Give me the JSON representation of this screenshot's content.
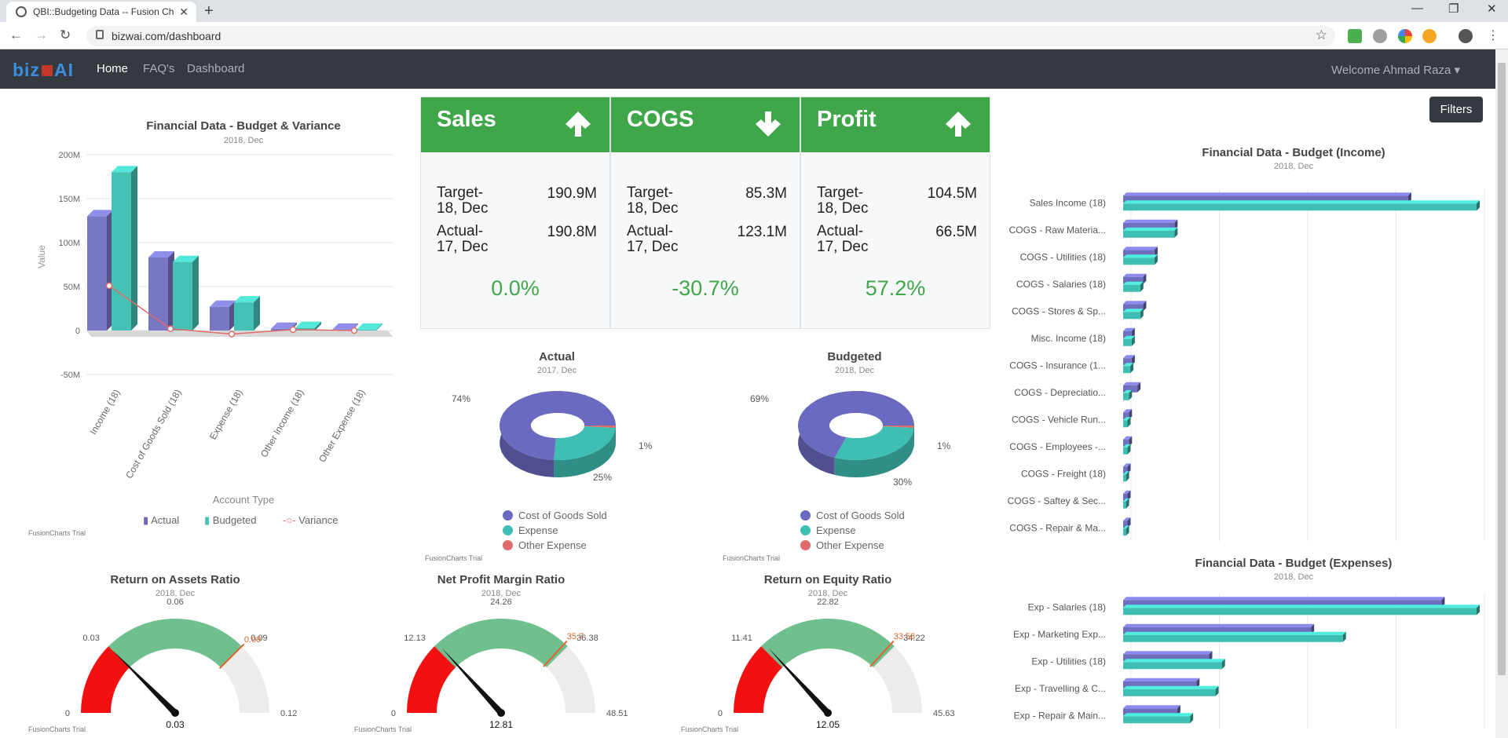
{
  "browser": {
    "tab_title": "QBI::Budgeting Data -- Fusion Ch",
    "url": "bizwai.com/dashboard"
  },
  "navbar": {
    "logo": "bizwAI",
    "links": [
      "Home",
      "FAQ's",
      "Dashboard"
    ],
    "welcome": "Welcome  Ahmad Raza"
  },
  "filters_label": "Filters",
  "kpis": [
    {
      "title": "Sales",
      "direction": "up",
      "target_label": "Target-\n18, Dec",
      "target": "190.9M",
      "actual_label": "Actual-\n17, Dec",
      "actual": "190.8M",
      "pct": "0.0%"
    },
    {
      "title": "COGS",
      "direction": "down",
      "target_label": "Target-\n18, Dec",
      "target": "85.3M",
      "actual_label": "Actual-\n17, Dec",
      "actual": "123.1M",
      "pct": "-30.7%"
    },
    {
      "title": "Profit",
      "direction": "up",
      "target_label": "Target-\n18, Dec",
      "target": "104.5M",
      "actual_label": "Actual-\n17, Dec",
      "actual": "66.5M",
      "pct": "57.2%"
    }
  ],
  "trial_text": "FusionCharts Trial",
  "chart_data": [
    {
      "type": "bar",
      "title": "Financial Data - Budget & Variance",
      "subtitle": "2018, Dec",
      "xlabel": "Account Type",
      "ylabel": "Value",
      "yticks": [
        "200M",
        "150M",
        "100M",
        "50M",
        "0",
        "-50M"
      ],
      "ylim": [
        -50,
        200
      ],
      "categories": [
        "Income (18)",
        "Cost of Goods Sold (18)",
        "Expense (18)",
        "Other Income (18)",
        "Other Expense (18)"
      ],
      "series": [
        {
          "name": "Actual",
          "values": [
            130,
            83,
            27,
            2,
            1
          ],
          "color": "#7777c4"
        },
        {
          "name": "Budgeted",
          "values": [
            180,
            78,
            32,
            3,
            1
          ],
          "color": "#45c1b5"
        },
        {
          "name": "Variance",
          "values": [
            51,
            2,
            -4,
            1,
            0
          ],
          "color": "#e06b6b"
        }
      ]
    },
    {
      "type": "pie",
      "title": "Actual",
      "subtitle": "2017, Dec",
      "labels": [
        "Cost of Goods Sold",
        "Expense",
        "Other Expense"
      ],
      "values": [
        74,
        25,
        1
      ],
      "value_labels": [
        "74%",
        "25%",
        "1%"
      ],
      "colors": [
        "#6a6ac0",
        "#3fbfb3",
        "#e06b6b"
      ]
    },
    {
      "type": "pie",
      "title": "Budgeted",
      "subtitle": "2018, Dec",
      "labels": [
        "Cost of Goods Sold",
        "Expense",
        "Other Expense"
      ],
      "values": [
        69,
        30,
        1
      ],
      "value_labels": [
        "69%",
        "30%",
        "1%"
      ],
      "colors": [
        "#6a6ac0",
        "#3fbfb3",
        "#e06b6b"
      ]
    },
    {
      "type": "bar",
      "title": "Financial Data - Budget (Income)",
      "subtitle": "2018, Dec",
      "categories": [
        "Sales Income (18)",
        "COGS - Raw Materia...",
        "COGS - Utilities (18)",
        "COGS - Salaries (18)",
        "COGS - Stores & Sp...",
        "Misc. Income (18)",
        "COGS - Insurance (1...",
        "COGS - Depreciatio...",
        "COGS - Vehicle Run...",
        "COGS - Employees -...",
        "COGS - Freight (18)",
        "COGS - Saftey & Sec...",
        "COGS - Repair & Ma..."
      ],
      "series": [
        {
          "name": "Actual",
          "values": [
            100,
            18,
            11,
            7,
            7,
            3,
            3,
            5,
            2,
            2,
            1.5,
            1.5,
            1.5
          ]
        },
        {
          "name": "Budgeted",
          "values": [
            124,
            18,
            11,
            6,
            6,
            3,
            2.5,
            2,
            1.5,
            1.5,
            1,
            1,
            1
          ]
        }
      ]
    },
    {
      "type": "bar",
      "title": "Financial Data - Budget (Expenses)",
      "subtitle": "2018, Dec",
      "categories": [
        "Exp - Salaries (18)",
        "Exp - Marketing Exp...",
        "Exp - Utilities (18)",
        "Exp - Travelling & C...",
        "Exp - Repair & Main..."
      ],
      "series": [
        {
          "name": "Actual",
          "values": [
            100,
            59,
            27,
            23,
            17
          ]
        },
        {
          "name": "Budgeted",
          "values": [
            111,
            69,
            31,
            29,
            21
          ]
        }
      ]
    },
    {
      "type": "gauge",
      "title": "Return on Assets Ratio",
      "subtitle": "2018, Dec",
      "min": 0,
      "max": 0.12,
      "ticks": [
        "0",
        "0.03",
        "0.06",
        "0.09",
        "0.12"
      ],
      "red_to": 0.03,
      "green_to": 0.09,
      "value": 0.03,
      "value_label": "0.03",
      "target": 0.09,
      "target_label": "0.09"
    },
    {
      "type": "gauge",
      "title": "Net Profit Margin Ratio",
      "subtitle": "2018, Dec",
      "min": 0,
      "max": 48.51,
      "ticks": [
        "0",
        "12.13",
        "24.26",
        "36.38",
        "48.51"
      ],
      "red_to": 12.13,
      "green_to": 36.38,
      "value": 12.81,
      "value_label": "12.81",
      "target": 35.7,
      "target_label": "35.7"
    },
    {
      "type": "gauge",
      "title": "Return on Equity Ratio",
      "subtitle": "2018, Dec",
      "min": 0,
      "max": 45.63,
      "ticks": [
        "0",
        "11.41",
        "22.82",
        "34.22",
        "45.63"
      ],
      "red_to": 11.41,
      "green_to": 34.22,
      "value": 12.05,
      "value_label": "12.05",
      "target": 33.58,
      "target_label": "33.58"
    }
  ]
}
